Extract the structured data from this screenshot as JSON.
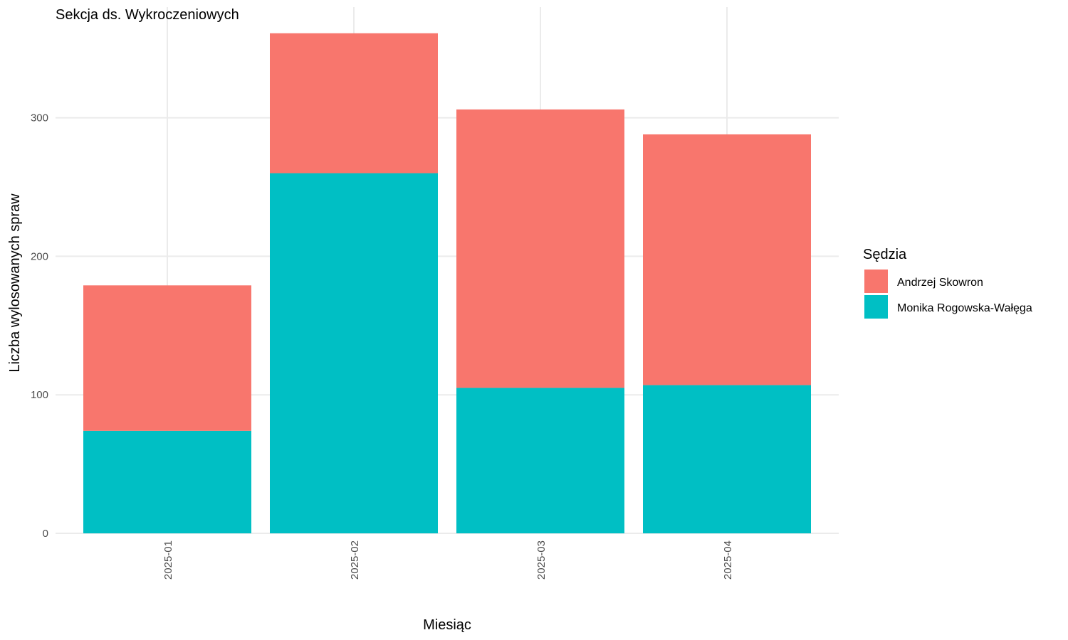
{
  "chart_data": {
    "type": "bar",
    "stacked": true,
    "title": "Sekcja ds. Wykroczeniowych",
    "xlabel": "Miesiąc",
    "ylabel": "Liczba wylosowanych spraw",
    "categories": [
      "2025-01",
      "2025-02",
      "2025-03",
      "2025-04"
    ],
    "series": [
      {
        "name": "Andrzej Skowron",
        "color": "#F8766D",
        "values": [
          105,
          101,
          201,
          181
        ]
      },
      {
        "name": "Monika Rogowska-Wałęga",
        "color": "#00BFC4",
        "values": [
          74,
          260,
          105,
          107
        ]
      }
    ],
    "y_ticks": [
      0,
      100,
      200,
      300
    ],
    "ylim": [
      0,
      370
    ],
    "grid": true,
    "legend": {
      "title": "Sędzia",
      "position": "right"
    }
  }
}
